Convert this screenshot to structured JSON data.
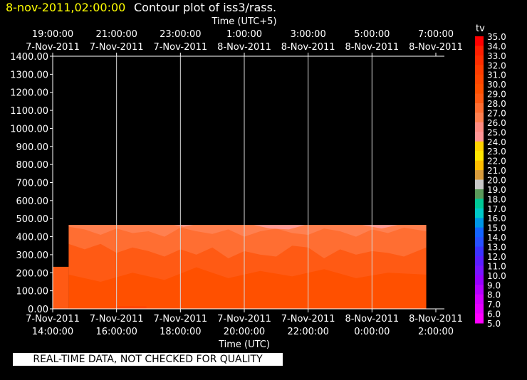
{
  "header": {
    "date_label": "8-nov-2011,02:00:00",
    "title": "Contour plot of iss3/rass."
  },
  "footer": {
    "quality_note": "REAL-TIME DATA, NOT CHECKED FOR QUALITY"
  },
  "chart_data": {
    "type": "heatmap",
    "title": "Contour plot of iss3/rass.",
    "top_axis_label": "Time (UTC+5)",
    "xlabel": "Time (UTC)",
    "ylabel": "",
    "ylim": [
      0,
      1400
    ],
    "y_ticks": [
      "0.00",
      "100.00",
      "200.00",
      "300.00",
      "400.00",
      "500.00",
      "600.00",
      "700.00",
      "800.00",
      "900.00",
      "1000.00",
      "1100.00",
      "1200.00",
      "1300.00",
      "1400.00"
    ],
    "x_range_hours": [
      0,
      12
    ],
    "bottom_ticks": [
      {
        "x": 0,
        "line1": "7-Nov-2011",
        "line2": "14:00:00"
      },
      {
        "x": 2,
        "line1": "7-Nov-2011",
        "line2": "16:00:00"
      },
      {
        "x": 4,
        "line1": "7-Nov-2011",
        "line2": "18:00:00"
      },
      {
        "x": 6,
        "line1": "7-Nov-2011",
        "line2": "20:00:00"
      },
      {
        "x": 8,
        "line1": "7-Nov-2011",
        "line2": "22:00:00"
      },
      {
        "x": 10,
        "line1": "8-Nov-2011",
        "line2": "0:00:00"
      },
      {
        "x": 12,
        "line1": "8-Nov-2011",
        "line2": "2:00:00"
      }
    ],
    "top_ticks": [
      {
        "x": 0,
        "line1": "19:00:00",
        "line2": "7-Nov-2011"
      },
      {
        "x": 2,
        "line1": "21:00:00",
        "line2": "7-Nov-2011"
      },
      {
        "x": 4,
        "line1": "23:00:00",
        "line2": "7-Nov-2011"
      },
      {
        "x": 6,
        "line1": "1:00:00",
        "line2": "8-Nov-2011"
      },
      {
        "x": 8,
        "line1": "3:00:00",
        "line2": "8-Nov-2011"
      },
      {
        "x": 10,
        "line1": "5:00:00",
        "line2": "8-Nov-2011"
      },
      {
        "x": 12,
        "line1": "7:00:00",
        "line2": "8-Nov-2011"
      }
    ],
    "data_extent": {
      "x_start": 0.5,
      "x_end": 11.7,
      "y_top": 465,
      "early_block": {
        "x_start": 0,
        "x_end": 0.5,
        "y_top": 233
      }
    },
    "contour_boundaries": [
      {
        "name": "28-29 / 29-30",
        "color": "#ff5a14",
        "points": [
          [
            0.5,
            190
          ],
          [
            1.5,
            150
          ],
          [
            2.5,
            200
          ],
          [
            3.5,
            160
          ],
          [
            4.5,
            230
          ],
          [
            5.5,
            170
          ],
          [
            6.5,
            210
          ],
          [
            7.5,
            180
          ],
          [
            8.5,
            220
          ],
          [
            9.5,
            170
          ],
          [
            10.5,
            200
          ],
          [
            11.7,
            190
          ]
        ]
      },
      {
        "name": "27-28 / 28-29",
        "color": "#ff6e32",
        "points": [
          [
            0.5,
            360
          ],
          [
            1,
            330
          ],
          [
            1.5,
            360
          ],
          [
            2,
            310
          ],
          [
            2.5,
            340
          ],
          [
            3,
            320
          ],
          [
            3.5,
            290
          ],
          [
            4,
            330
          ],
          [
            4.5,
            300
          ],
          [
            5,
            340
          ],
          [
            5.5,
            280
          ],
          [
            6,
            320
          ],
          [
            6.5,
            300
          ],
          [
            7,
            290
          ],
          [
            7.5,
            350
          ],
          [
            8,
            340
          ],
          [
            8.5,
            280
          ],
          [
            9,
            330
          ],
          [
            9.5,
            300
          ],
          [
            10,
            320
          ],
          [
            10.5,
            310
          ],
          [
            11,
            290
          ],
          [
            11.7,
            340
          ]
        ]
      },
      {
        "name": "26-27 / 27-28",
        "color": "#ff8050",
        "points": [
          [
            0.5,
            455
          ],
          [
            1,
            440
          ],
          [
            1.5,
            410
          ],
          [
            2,
            445
          ],
          [
            2.5,
            420
          ],
          [
            3,
            430
          ],
          [
            3.5,
            400
          ],
          [
            4,
            450
          ],
          [
            4.5,
            430
          ],
          [
            5,
            415
          ],
          [
            5.5,
            440
          ],
          [
            6,
            400
          ],
          [
            6.5,
            430
          ],
          [
            7,
            445
          ],
          [
            7.5,
            420
          ],
          [
            8,
            410
          ],
          [
            8.5,
            445
          ],
          [
            9,
            430
          ],
          [
            9.5,
            400
          ],
          [
            10,
            440
          ],
          [
            10.5,
            420
          ],
          [
            11,
            450
          ],
          [
            11.7,
            430
          ]
        ]
      },
      {
        "name": "25-26 top",
        "color": "#ff9a96",
        "points": [
          [
            3.8,
            465
          ],
          [
            4.1,
            455
          ],
          [
            4.4,
            465
          ],
          [
            6.3,
            465
          ],
          [
            6.8,
            445
          ],
          [
            7.4,
            440
          ],
          [
            7.9,
            465
          ],
          [
            9.7,
            465
          ],
          [
            10.3,
            445
          ],
          [
            10.8,
            465
          ],
          [
            11.7,
            465
          ]
        ]
      }
    ],
    "colorbar": {
      "label": "tv",
      "min": 5.0,
      "max": 35.0,
      "levels": [
        "35.0",
        "34.0",
        "33.0",
        "32.0",
        "31.0",
        "30.0",
        "29.0",
        "28.0",
        "27.0",
        "26.0",
        "25.0",
        "24.0",
        "23.0",
        "22.0",
        "21.0",
        "20.0",
        "19.0",
        "18.0",
        "17.0",
        "16.0",
        "15.0",
        "14.0",
        "13.0",
        "12.0",
        "11.0",
        "10.0",
        "9.0",
        "8.0",
        "7.0",
        "6.0",
        "5.0"
      ],
      "colors": [
        "#ff0000",
        "#ff1e00",
        "#ff2d00",
        "#ff3c00",
        "#ff4600",
        "#ff5000",
        "#ff5a14",
        "#ff6e32",
        "#ff8050",
        "#ff8c82",
        "#ff9696",
        "#ffd200",
        "#ffe600",
        "#ffbe00",
        "#d89b3c",
        "#c8c8c8",
        "#5a9a5a",
        "#00c896",
        "#00c8c8",
        "#0096e6",
        "#1464ff",
        "#2850ff",
        "#3c32ff",
        "#5a1eff",
        "#7814ff",
        "#9600ff",
        "#b400ff",
        "#d200ff",
        "#e600ff",
        "#ff00ff"
      ]
    }
  }
}
